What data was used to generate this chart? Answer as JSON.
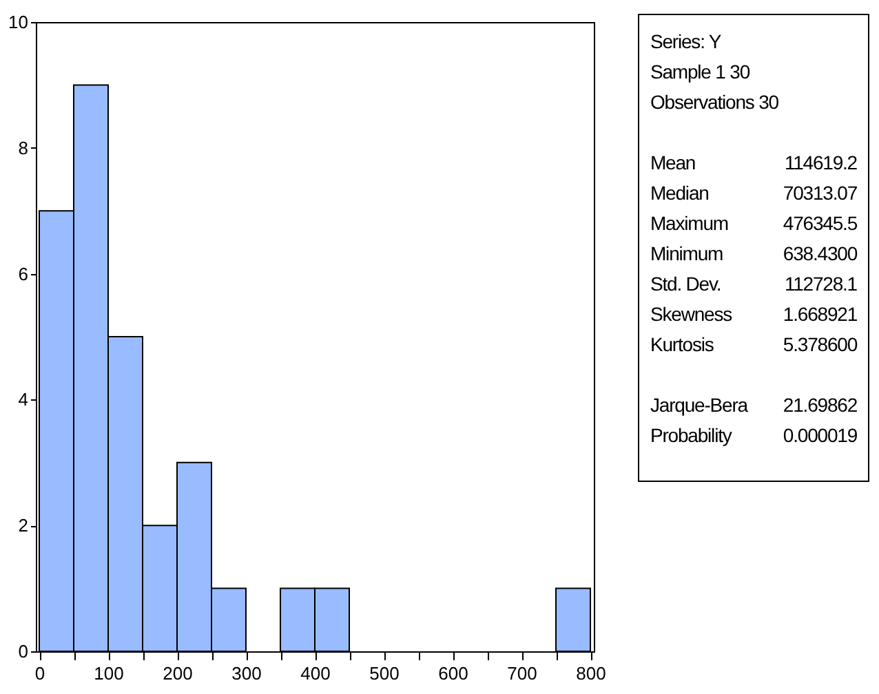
{
  "chart_data": {
    "type": "histogram",
    "color": "#99bbff",
    "bins": [
      0,
      50,
      100,
      150,
      200,
      250,
      300,
      350,
      400,
      450,
      500,
      550,
      600,
      650,
      700,
      750,
      800
    ],
    "values": [
      7,
      9,
      5,
      2,
      3,
      1,
      0,
      1,
      1,
      0,
      0,
      0,
      0,
      0,
      0,
      1
    ],
    "xlim": [
      -5,
      805
    ],
    "ylim": [
      0,
      10
    ],
    "xticks": [
      0,
      {
        "value": 50,
        "label": null
      },
      100,
      {
        "value": 150,
        "label": null
      },
      200,
      {
        "value": 250,
        "label": null
      },
      300,
      {
        "value": 350,
        "label": null
      },
      400,
      {
        "value": 450,
        "label": null
      },
      500,
      {
        "value": 550,
        "label": null
      },
      600,
      {
        "value": 650,
        "label": null
      },
      700,
      {
        "value": 750,
        "label": null
      },
      800
    ],
    "yticks": [
      0,
      2,
      4,
      6,
      8,
      10
    ],
    "grid": false,
    "annotations": [
      "Series: Y\nSample 1 30\nObservations 30",
      "Mean\t114619.2\nMedian\t70313.07\nMaximum\t476345.5\nMinimum\t638.4300\nStd. Dev.\t112728.1\nSkewness\t1.668921\nKurtosis\t5.378600",
      "Jarque-Bera\t21.69862\nProbability\t0.000019"
    ]
  }
}
